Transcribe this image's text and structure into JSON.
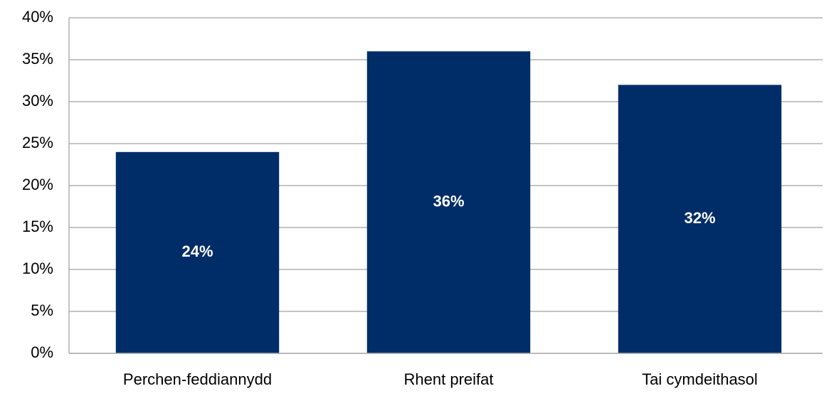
{
  "chart_data": {
    "type": "bar",
    "categories": [
      "Perchen-feddiannydd",
      "Rhent preifat",
      "Tai cymdeithasol"
    ],
    "values": [
      24,
      36,
      32
    ],
    "value_labels": [
      "24%",
      "36%",
      "32%"
    ],
    "color": "#002d67",
    "ylim": [
      0,
      40
    ],
    "yticks": [
      {
        "value": 0,
        "label": "0%"
      },
      {
        "value": 5,
        "label": "5%"
      },
      {
        "value": 10,
        "label": "10%"
      },
      {
        "value": 15,
        "label": "15%"
      },
      {
        "value": 20,
        "label": "20%"
      },
      {
        "value": 25,
        "label": "25%"
      },
      {
        "value": 30,
        "label": "30%"
      },
      {
        "value": 35,
        "label": "35%"
      },
      {
        "value": 40,
        "label": "40%"
      }
    ],
    "grid": true
  }
}
